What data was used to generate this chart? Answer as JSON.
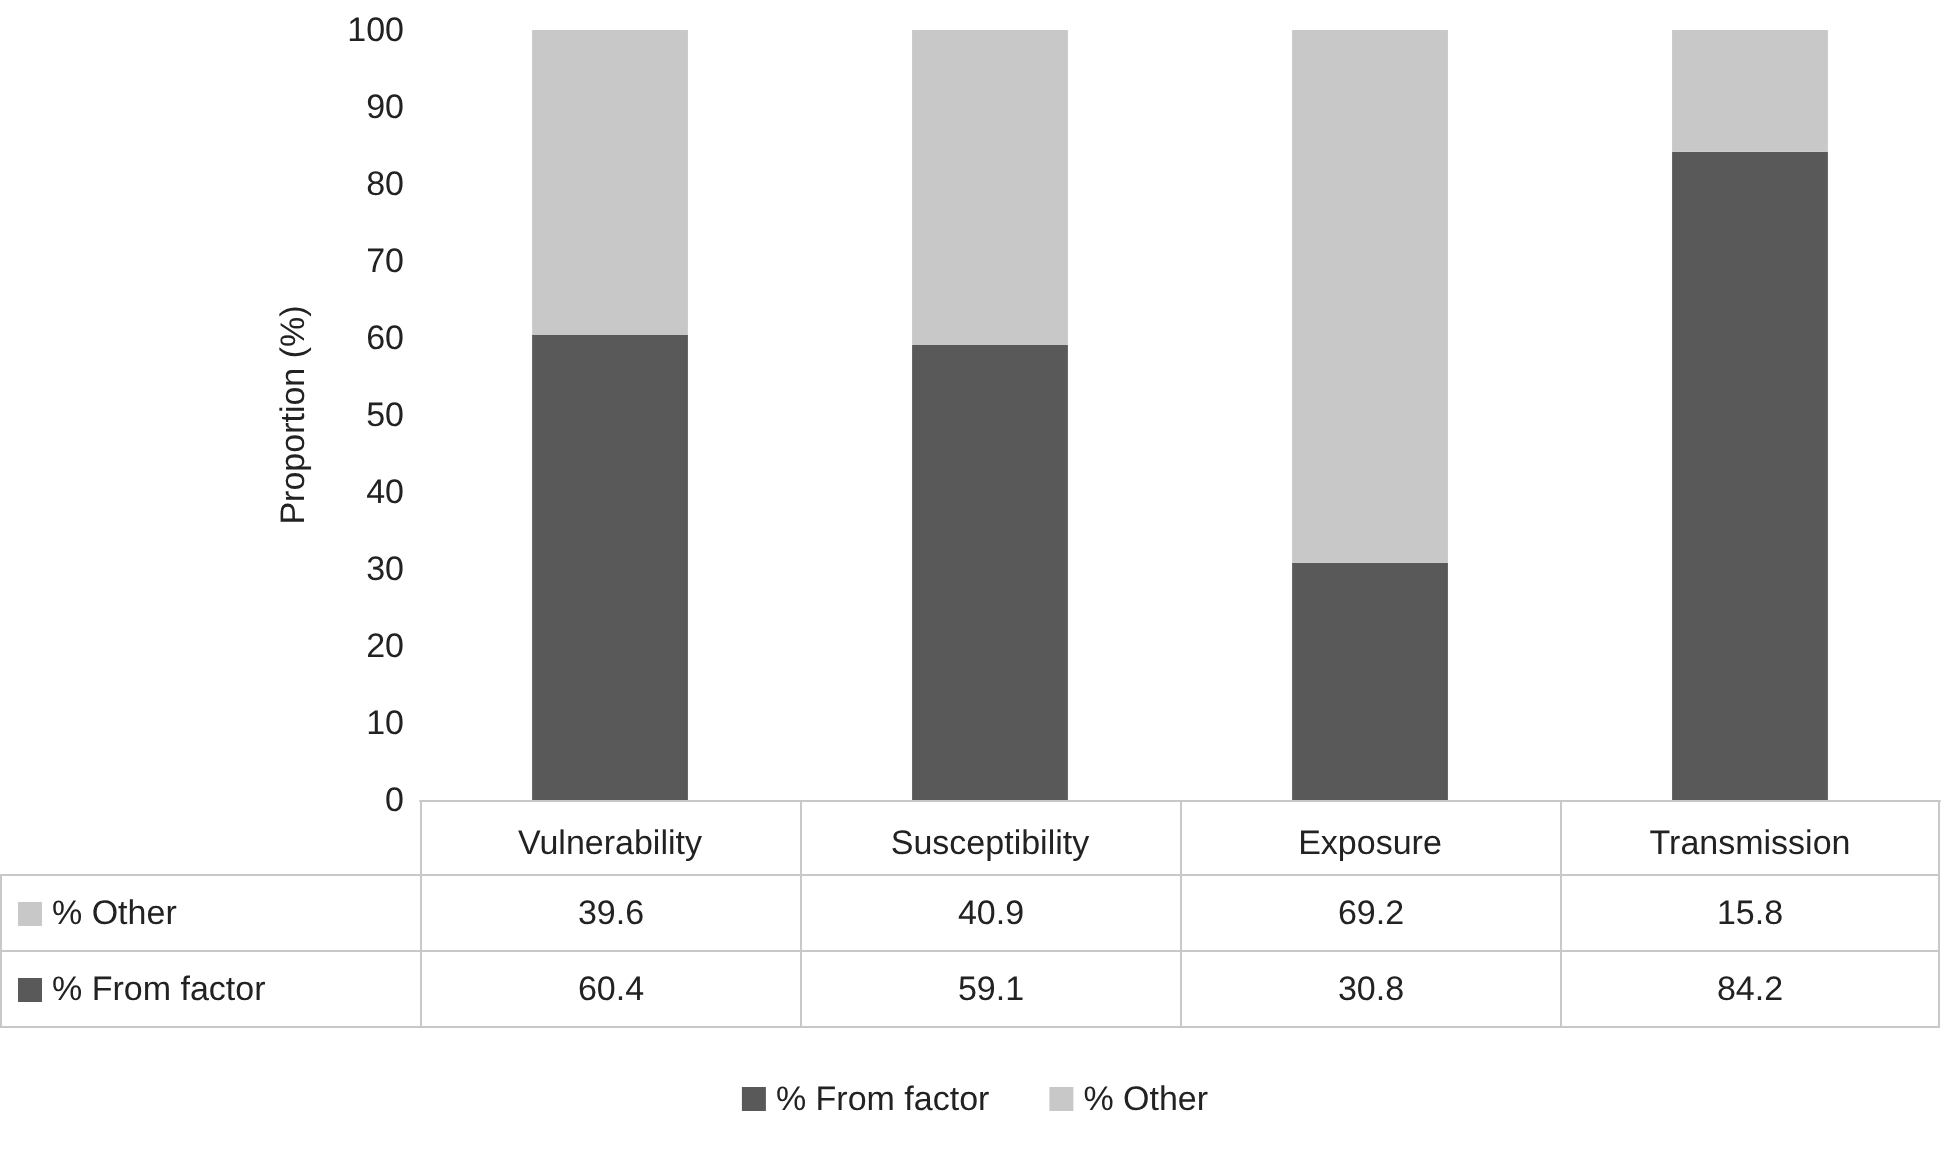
{
  "chart_data": {
    "type": "bar",
    "stacked": true,
    "ylabel": "Proportion (%)",
    "categories": [
      "Vulnerability",
      "Susceptibility",
      "Exposure",
      "Transmission"
    ],
    "series": [
      {
        "name": "% From factor",
        "color": "#595959",
        "values": [
          60.4,
          59.1,
          30.8,
          84.2
        ]
      },
      {
        "name": "% Other",
        "color": "#c8c8c8",
        "values": [
          39.6,
          40.9,
          69.2,
          15.8
        ]
      }
    ],
    "ylim": [
      0,
      100
    ],
    "yticks": [
      0,
      10,
      20,
      30,
      40,
      50,
      60,
      70,
      80,
      90,
      100
    ],
    "grid": false,
    "legend": "bottom",
    "data_labels": true
  }
}
